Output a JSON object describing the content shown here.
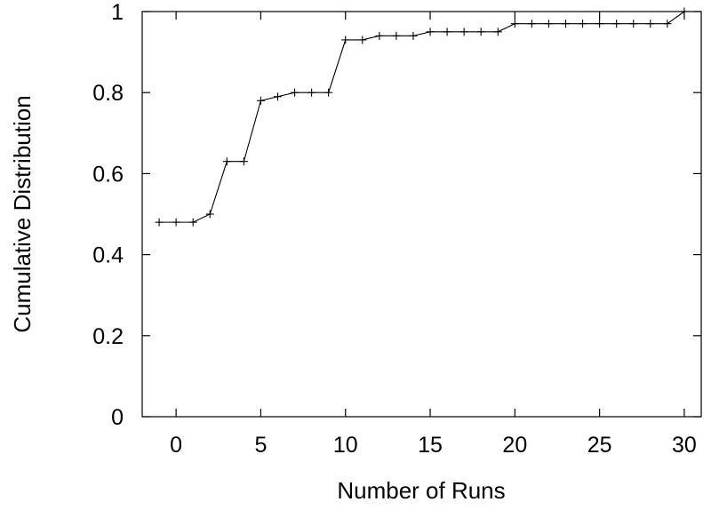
{
  "chart_data": {
    "type": "line",
    "title": "",
    "xlabel": "Number of Runs",
    "ylabel": "Cumulative Distribution",
    "xlim": [
      -2,
      31
    ],
    "ylim": [
      0,
      1
    ],
    "xticks": [
      0,
      5,
      10,
      15,
      20,
      25,
      30
    ],
    "yticks": [
      0,
      0.2,
      0.4,
      0.6,
      0.8,
      1
    ],
    "ytick_labels": [
      "0",
      "0.2",
      "0.4",
      "0.6",
      "0.8",
      "1"
    ],
    "grid": false,
    "legend": "none",
    "marker": "plus",
    "color": "#000000",
    "series": [
      {
        "x": [
          -1,
          0,
          1,
          2,
          3,
          4,
          5,
          6,
          7,
          8,
          9,
          10,
          11,
          12,
          13,
          14,
          15,
          16,
          17,
          18,
          19,
          20,
          21,
          22,
          23,
          24,
          25,
          26,
          27,
          28,
          29,
          30
        ],
        "y": [
          0.48,
          0.48,
          0.48,
          0.5,
          0.63,
          0.63,
          0.78,
          0.79,
          0.8,
          0.8,
          0.8,
          0.93,
          0.93,
          0.94,
          0.94,
          0.94,
          0.95,
          0.95,
          0.95,
          0.95,
          0.95,
          0.97,
          0.97,
          0.97,
          0.97,
          0.97,
          0.97,
          0.97,
          0.97,
          0.97,
          0.97,
          1.0
        ]
      }
    ]
  }
}
